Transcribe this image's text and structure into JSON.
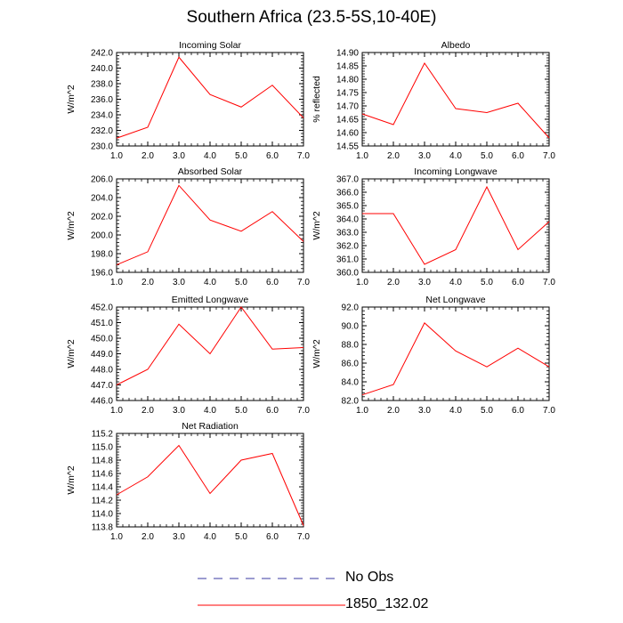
{
  "title": "Southern Africa (23.5-5S,10-40E)",
  "colors": {
    "model": "#ff0000",
    "obs": "#3a3aa0",
    "axis": "#000000"
  },
  "legend": {
    "obs_label": "No Obs",
    "model_label": "1850_132.02"
  },
  "chart_data": [
    {
      "type": "line",
      "title": "Incoming Solar",
      "ylabel": "W/m^2",
      "x": [
        1,
        2,
        3,
        4,
        5,
        6,
        7
      ],
      "xticks": [
        "1.0",
        "2.0",
        "3.0",
        "4.0",
        "5.0",
        "6.0",
        "7.0"
      ],
      "xlim": [
        1,
        7
      ],
      "ylim": [
        230,
        242
      ],
      "yticks": [
        "230.0",
        "232.0",
        "234.0",
        "236.0",
        "238.0",
        "240.0",
        "242.0"
      ],
      "series": [
        {
          "name": "1850_132.02",
          "values": [
            231.0,
            232.4,
            241.4,
            236.6,
            235.0,
            237.8,
            233.6
          ]
        }
      ]
    },
    {
      "type": "line",
      "title": "Albedo",
      "ylabel": "% reflected",
      "x": [
        1,
        2,
        3,
        4,
        5,
        6,
        7
      ],
      "xticks": [
        "1.0",
        "2.0",
        "3.0",
        "4.0",
        "5.0",
        "6.0",
        "7.0"
      ],
      "xlim": [
        1,
        7
      ],
      "ylim": [
        14.55,
        14.9
      ],
      "yticks": [
        "14.55",
        "14.60",
        "14.65",
        "14.70",
        "14.75",
        "14.80",
        "14.85",
        "14.90"
      ],
      "series": [
        {
          "name": "1850_132.02",
          "values": [
            14.67,
            14.63,
            14.86,
            14.69,
            14.675,
            14.71,
            14.58
          ]
        }
      ]
    },
    {
      "type": "line",
      "title": "Absorbed Solar",
      "ylabel": "W/m^2",
      "x": [
        1,
        2,
        3,
        4,
        5,
        6,
        7
      ],
      "xticks": [
        "1.0",
        "2.0",
        "3.0",
        "4.0",
        "5.0",
        "6.0",
        "7.0"
      ],
      "xlim": [
        1,
        7
      ],
      "ylim": [
        196,
        206
      ],
      "yticks": [
        "196.0",
        "198.0",
        "200.0",
        "202.0",
        "204.0",
        "206.0"
      ],
      "series": [
        {
          "name": "1850_132.02",
          "values": [
            196.8,
            198.2,
            205.3,
            201.6,
            200.4,
            202.5,
            199.3
          ]
        }
      ]
    },
    {
      "type": "line",
      "title": "Incoming Longwave",
      "ylabel": "W/m^2",
      "x": [
        1,
        2,
        3,
        4,
        5,
        6,
        7
      ],
      "xticks": [
        "1.0",
        "2.0",
        "3.0",
        "4.0",
        "5.0",
        "6.0",
        "7.0"
      ],
      "xlim": [
        1,
        7
      ],
      "ylim": [
        360,
        367
      ],
      "yticks": [
        "360.0",
        "361.0",
        "362.0",
        "363.0",
        "364.0",
        "365.0",
        "366.0",
        "367.0"
      ],
      "series": [
        {
          "name": "1850_132.02",
          "values": [
            364.4,
            364.4,
            360.6,
            361.7,
            366.4,
            361.7,
            363.8
          ]
        }
      ]
    },
    {
      "type": "line",
      "title": "Emitted Longwave",
      "ylabel": "W/m^2",
      "x": [
        1,
        2,
        3,
        4,
        5,
        6,
        7
      ],
      "xticks": [
        "1.0",
        "2.0",
        "3.0",
        "4.0",
        "5.0",
        "6.0",
        "7.0"
      ],
      "xlim": [
        1,
        7
      ],
      "ylim": [
        446,
        452
      ],
      "yticks": [
        "446.0",
        "447.0",
        "448.0",
        "449.0",
        "450.0",
        "451.0",
        "452.0"
      ],
      "series": [
        {
          "name": "1850_132.02",
          "values": [
            447.0,
            448.0,
            450.9,
            449.0,
            452.0,
            449.3,
            449.4
          ]
        }
      ]
    },
    {
      "type": "line",
      "title": "Net Longwave",
      "ylabel": "W/m^2",
      "x": [
        1,
        2,
        3,
        4,
        5,
        6,
        7
      ],
      "xticks": [
        "1.0",
        "2.0",
        "3.0",
        "4.0",
        "5.0",
        "6.0",
        "7.0"
      ],
      "xlim": [
        1,
        7
      ],
      "ylim": [
        82,
        92
      ],
      "yticks": [
        "82.0",
        "84.0",
        "86.0",
        "88.0",
        "90.0",
        "92.0"
      ],
      "series": [
        {
          "name": "1850_132.02",
          "values": [
            82.6,
            83.7,
            90.3,
            87.3,
            85.6,
            87.6,
            85.6
          ]
        }
      ]
    },
    {
      "type": "line",
      "title": "Net Radiation",
      "ylabel": "W/m^2",
      "x": [
        1,
        2,
        3,
        4,
        5,
        6,
        7
      ],
      "xticks": [
        "1.0",
        "2.0",
        "3.0",
        "4.0",
        "5.0",
        "6.0",
        "7.0"
      ],
      "xlim": [
        1,
        7
      ],
      "ylim": [
        113.8,
        115.2
      ],
      "yticks": [
        "113.8",
        "114.0",
        "114.2",
        "114.4",
        "114.6",
        "114.8",
        "115.0",
        "115.2"
      ],
      "series": [
        {
          "name": "1850_132.02",
          "values": [
            114.28,
            114.55,
            115.02,
            114.3,
            114.8,
            114.9,
            113.82
          ]
        }
      ]
    }
  ]
}
